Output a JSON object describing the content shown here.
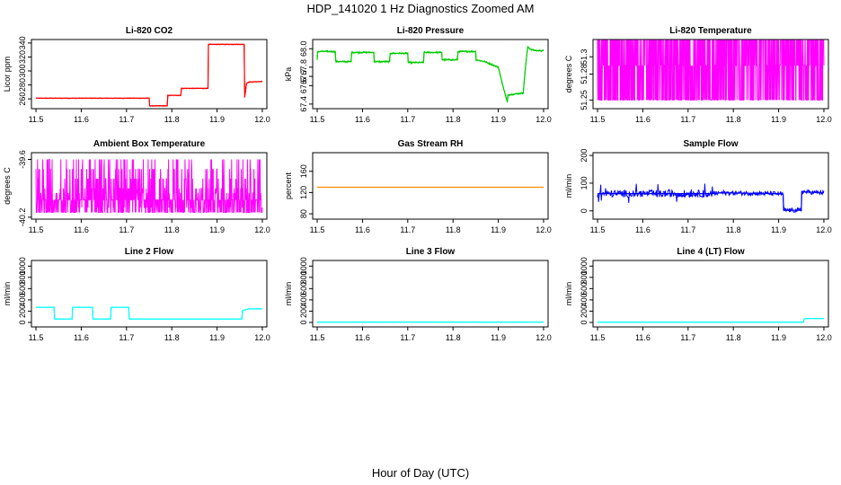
{
  "figure": {
    "title": "HDP_141020  1 Hz Diagnostics Zoomed AM",
    "xlabel": "Hour of Day (UTC)"
  },
  "chart_data": [
    {
      "type": "line",
      "title": "Li-820 CO2",
      "ylabel": "Licor ppm",
      "color": "#ff0000",
      "xlim": [
        11.49,
        12.01
      ],
      "ylim": [
        246,
        345
      ],
      "xticks": [
        "11.5",
        "11.6",
        "11.7",
        "11.8",
        "11.9",
        "12.0"
      ],
      "yticks": [
        "260",
        "280",
        "300",
        "320",
        "340"
      ],
      "noise": 0.6,
      "x": [
        11.5,
        11.75,
        11.751,
        11.79,
        11.791,
        11.82,
        11.821,
        11.88,
        11.881,
        11.96,
        11.961,
        11.965,
        11.97,
        12.0
      ],
      "y": [
        261,
        261,
        250,
        250,
        265,
        265,
        275,
        275,
        338,
        338,
        262,
        282,
        284,
        285
      ]
    },
    {
      "type": "line",
      "title": "Li-820 Pressure",
      "ylabel": "kPa",
      "color": "#00cc00",
      "xlim": [
        11.49,
        12.01
      ],
      "ylim": [
        67.35,
        68.1
      ],
      "xticks": [
        "11.5",
        "11.6",
        "11.7",
        "11.8",
        "11.9",
        "12.0"
      ],
      "yticks": [
        "67.4",
        "67.6",
        "67.7",
        "67.8",
        "68.0"
      ],
      "noise": 0.01,
      "x": [
        11.5,
        11.501,
        11.54,
        11.541,
        11.575,
        11.576,
        11.625,
        11.626,
        11.66,
        11.661,
        11.7,
        11.701,
        11.735,
        11.736,
        11.775,
        11.776,
        11.81,
        11.811,
        11.85,
        11.851,
        11.87,
        11.9,
        11.91,
        11.92,
        11.921,
        11.955,
        11.96,
        11.965,
        11.97,
        11.98,
        12.0
      ],
      "y": [
        67.88,
        67.97,
        67.97,
        67.86,
        67.86,
        67.96,
        67.96,
        67.86,
        67.86,
        67.95,
        67.95,
        67.85,
        67.85,
        67.96,
        67.96,
        67.88,
        67.88,
        67.97,
        67.97,
        67.88,
        67.86,
        67.8,
        67.6,
        67.42,
        67.5,
        67.52,
        67.8,
        68.02,
        68.0,
        67.98,
        67.98
      ]
    },
    {
      "type": "line",
      "title": "Li-820 Temperature",
      "ylabel": "degrees C",
      "color": "#ff00ff",
      "xlim": [
        11.49,
        12.01
      ],
      "ylim": [
        51.24,
        51.32
      ],
      "xticks": [
        "11.5",
        "11.6",
        "11.7",
        "11.8",
        "11.9",
        "12.0"
      ],
      "yticks": [
        "51.25",
        "51.28",
        "51.3"
      ],
      "noise": 0,
      "x": [
        11.5,
        12.0
      ],
      "y": [
        51.25,
        51.25
      ],
      "levels": [
        51.25,
        51.29,
        51.32
      ],
      "jitter_points": 900
    },
    {
      "type": "line",
      "title": "Ambient Box Temperature",
      "ylabel": "degrees C",
      "color": "#ff00ff",
      "xlim": [
        11.49,
        12.01
      ],
      "ylim": [
        -40.22,
        -39.53
      ],
      "xticks": [
        "11.5",
        "11.6",
        "11.7",
        "11.8",
        "11.9",
        "12.0"
      ],
      "yticks": [
        "-40.2",
        "-39.6"
      ],
      "noise": 0,
      "x": [
        11.5,
        12.0
      ],
      "y": [
        -40.0,
        -40.0
      ],
      "levels": [
        -40.15,
        -40.1,
        -40.02,
        -39.95,
        -39.9,
        -39.8,
        -39.7,
        -39.6
      ],
      "jitter_points": 700
    },
    {
      "type": "line",
      "title": "Gas Stream RH",
      "ylabel": "percent",
      "color": "#ff8c00",
      "xlim": [
        11.49,
        12.01
      ],
      "ylim": [
        70,
        195
      ],
      "xticks": [
        "11.5",
        "11.6",
        "11.7",
        "11.8",
        "11.9",
        "12.0"
      ],
      "yticks": [
        "80",
        "120",
        "160"
      ],
      "noise": 0,
      "x": [
        11.5,
        12.0
      ],
      "y": [
        130,
        130
      ]
    },
    {
      "type": "line",
      "title": "Sample Flow",
      "ylabel": "ml/min",
      "color": "#0000ff",
      "xlim": [
        11.49,
        12.01
      ],
      "ylim": [
        -30,
        210
      ],
      "xticks": [
        "11.5",
        "11.6",
        "11.7",
        "11.8",
        "11.9",
        "12.0"
      ],
      "yticks": [
        "0",
        "100",
        "200"
      ],
      "noise": 8,
      "spiky_until": 11.76,
      "x": [
        11.5,
        11.76,
        11.77,
        11.9,
        11.91,
        11.911,
        11.95,
        11.951,
        11.96,
        12.0
      ],
      "y": [
        62,
        62,
        65,
        62,
        60,
        2,
        2,
        70,
        68,
        65
      ]
    },
    {
      "type": "line",
      "title": "Line 2 Flow",
      "ylabel": "ml/min",
      "color": "#00ffff",
      "xlim": [
        11.49,
        12.01
      ],
      "ylim": [
        -80,
        1100
      ],
      "xticks": [
        "11.5",
        "11.6",
        "11.7",
        "11.8",
        "11.9",
        "12.0"
      ],
      "yticks": [
        "0",
        "200",
        "400",
        "600",
        "800",
        "1000"
      ],
      "noise": 0,
      "x": [
        11.5,
        11.54,
        11.541,
        11.58,
        11.581,
        11.625,
        11.626,
        11.665,
        11.666,
        11.705,
        11.706,
        11.955,
        11.956,
        11.97,
        12.0
      ],
      "y": [
        270,
        270,
        60,
        60,
        270,
        270,
        60,
        60,
        270,
        270,
        60,
        60,
        210,
        240,
        240
      ]
    },
    {
      "type": "line",
      "title": "Line 3 Flow",
      "ylabel": "ml/min",
      "color": "#00ffff",
      "xlim": [
        11.49,
        12.01
      ],
      "ylim": [
        -80,
        1100
      ],
      "xticks": [
        "11.5",
        "11.6",
        "11.7",
        "11.8",
        "11.9",
        "12.0"
      ],
      "yticks": [
        "0",
        "200",
        "400",
        "600",
        "800",
        "1000"
      ],
      "noise": 4,
      "x": [
        11.5,
        12.0
      ],
      "y": [
        5,
        5
      ]
    },
    {
      "type": "line",
      "title": "Line 4 (LT) Flow",
      "ylabel": "ml/min",
      "color": "#00ffff",
      "xlim": [
        11.49,
        12.01
      ],
      "ylim": [
        -80,
        1100
      ],
      "xticks": [
        "11.5",
        "11.6",
        "11.7",
        "11.8",
        "11.9",
        "12.0"
      ],
      "yticks": [
        "0",
        "200",
        "400",
        "600",
        "800",
        "1000"
      ],
      "noise": 0,
      "x": [
        11.5,
        11.955,
        11.956,
        11.96,
        12.0
      ],
      "y": [
        5,
        5,
        60,
        70,
        70
      ]
    }
  ]
}
